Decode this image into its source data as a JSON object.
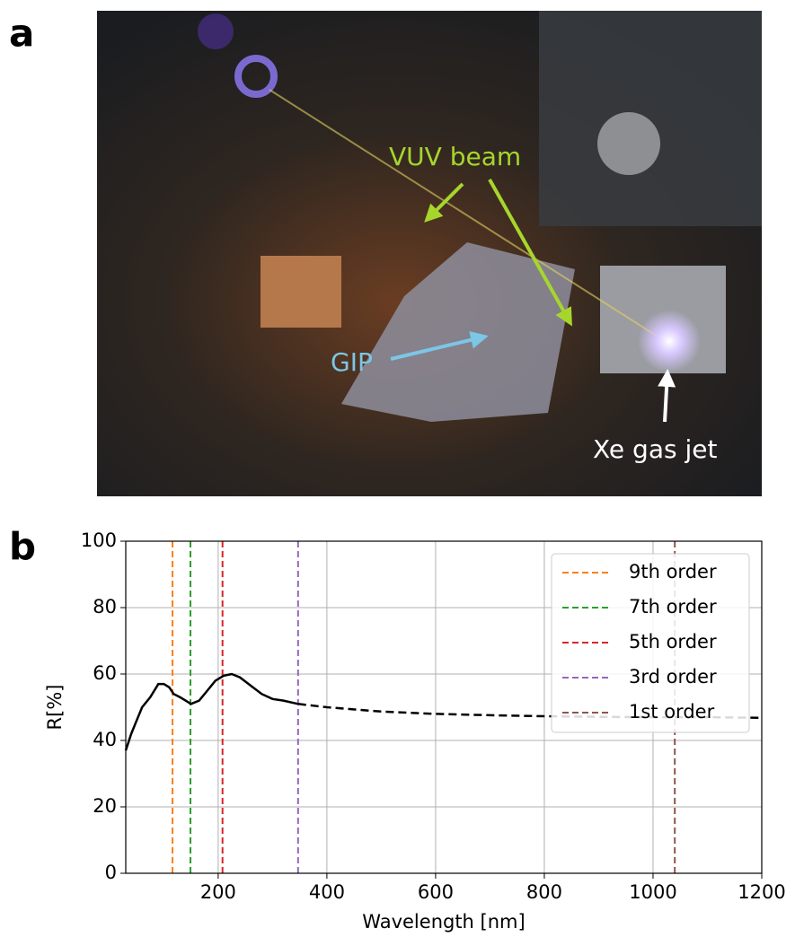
{
  "panel_labels": [
    "a",
    "b"
  ],
  "photo": {
    "annotations": [
      "VUV beam",
      "GIP",
      "Xe gas jet"
    ]
  },
  "chart_data": {
    "type": "line",
    "xlabel": "Wavelength [nm]",
    "ylabel": "R[%]",
    "xlim": [
      30,
      1200
    ],
    "ylim": [
      0,
      100
    ],
    "xticks": [
      200,
      400,
      600,
      800,
      1000,
      1200
    ],
    "yticks": [
      0,
      20,
      40,
      60,
      80,
      100
    ],
    "grid": true,
    "legend": "upper right",
    "series": [
      {
        "color": "#000000",
        "style": "solid",
        "x": [
          30,
          40,
          50,
          60,
          75,
          90,
          100,
          110,
          118,
          130,
          140,
          150,
          165,
          180,
          195,
          210,
          225,
          240,
          260,
          280,
          300,
          320,
          347
        ],
        "values": [
          37,
          42,
          46,
          50,
          53,
          57,
          57,
          56,
          54,
          53,
          52,
          51,
          52,
          55,
          58,
          59.5,
          60,
          59,
          56.5,
          54,
          52.5,
          52,
          51
        ]
      },
      {
        "color": "#000000",
        "style": "dashed",
        "x": [
          347,
          400,
          500,
          600,
          700,
          800,
          900,
          1000,
          1100,
          1200
        ],
        "values": [
          51,
          50,
          48.7,
          48,
          47.6,
          47.3,
          47.1,
          47,
          47,
          46.8
        ]
      }
    ],
    "reference_lines": [
      {
        "name": "9th order",
        "color": "#ff7f0e",
        "x": 116
      },
      {
        "name": "7th order",
        "color": "#2ca02c",
        "x": 149
      },
      {
        "name": "5th order",
        "color": "#d62728",
        "x": 208
      },
      {
        "name": "3rd order",
        "color": "#9467bd",
        "x": 347
      },
      {
        "name": "1st order",
        "color": "#8c564b",
        "x": 1040
      }
    ]
  }
}
